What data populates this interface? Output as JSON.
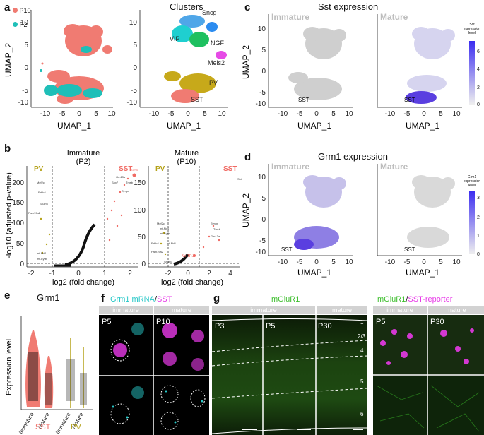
{
  "panels": {
    "a": {
      "letter": "a",
      "legend": [
        "P10",
        "P2"
      ],
      "title_right": "Clusters",
      "xlabel": "UMAP_1",
      "ylabel": "UMAP_2",
      "xticks": [
        "-10",
        "-5",
        "0",
        "5",
        "10"
      ],
      "yticks": [
        "10",
        "5",
        "0",
        "-5",
        "-10"
      ],
      "clusters": [
        "Sncg",
        "VIP",
        "NGF",
        "Meis2",
        "PV",
        "SST"
      ]
    },
    "b": {
      "letter": "b",
      "ylabel": "-log10 (adjusted p-value)",
      "xlabel": "log2 (fold change)",
      "left": {
        "title": "Immature",
        "sub": "(P2)",
        "yticks": [
          "200",
          "150",
          "100",
          "50",
          "0"
        ],
        "xticks": [
          "-2",
          "-1",
          "0",
          "1",
          "2"
        ]
      },
      "right": {
        "title": "Mature",
        "sub": "(P10)",
        "yticks": [
          "150",
          "100",
          "50",
          "0"
        ],
        "xticks": [
          "-2",
          "0",
          "2",
          "4"
        ]
      },
      "pv": "PV",
      "sst": "SST",
      "grm1": "Grm1",
      "genes_left": [
        "Mef2c",
        "Erbb4",
        "Sh3rf3",
        "Fam19a2",
        "mt-Nd4",
        "mt-Cytb",
        "Grm1",
        "Gm13a",
        "Sox7",
        "Tmsb",
        "Synpr"
      ],
      "genes_right": [
        "Mef2c",
        "mt-Nd4",
        "mt-Cytb",
        "Erbb4",
        "Fam19a2",
        "Sh3rf3",
        "mt-Nd1",
        "Sst",
        "Synpr",
        "Tmsb",
        "Gm13a",
        "Grm1"
      ]
    },
    "c": {
      "letter": "c",
      "title": "Sst expression",
      "immature": "Immature",
      "mature": "Mature",
      "sst": "SST",
      "cbar": [
        "Sst",
        "expression",
        "level"
      ],
      "cbar_ticks": [
        "6",
        "4",
        "2",
        "0"
      ]
    },
    "d": {
      "letter": "d",
      "title": "Grm1 expression",
      "immature": "Immature",
      "mature": "Mature",
      "sst": "SST",
      "cbar": [
        "Grm1",
        "expression",
        "level"
      ],
      "cbar_ticks": [
        "3",
        "2",
        "1",
        "0"
      ]
    },
    "e": {
      "letter": "e",
      "title": "Grm1",
      "ylabel": "Expression level",
      "xcats": [
        "Immature",
        "Mature",
        "Immature",
        "Mature"
      ],
      "groups": [
        "SST",
        "PV"
      ]
    },
    "f": {
      "letter": "f",
      "title_a": "Grm1 mRNA",
      "title_sep": "/",
      "title_b": "SST",
      "hdr_left": "immature",
      "hdr_right": "mature",
      "age_left": "P5",
      "age_right": "P10"
    },
    "g": {
      "letter": "g",
      "title": "mGluR1",
      "hdr_left": "immature",
      "hdr_right": "mature",
      "ages": [
        "P3",
        "P5",
        "P30"
      ],
      "layers": [
        "1",
        "2/3",
        "4",
        "5",
        "6"
      ],
      "title2_a": "mGluR1",
      "title2_sep": "/",
      "title2_b": "SST-reporter",
      "hdr2_left": "immature",
      "hdr2_right": "mature",
      "ages2": [
        "P5",
        "P30"
      ]
    }
  },
  "colors": {
    "p10": "#f07b72",
    "p2": "#1fbfb8",
    "pv": "#b5a21a",
    "sst": "#f06a63",
    "magenta": "#e83ae8",
    "cyan": "#28c8c8",
    "green": "#3fbf2f",
    "grey": "#bdbdbd",
    "blue": "#3b2cf0"
  }
}
